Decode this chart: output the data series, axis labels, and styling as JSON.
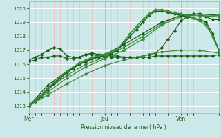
{
  "bg_color": "#cce8e8",
  "grid_color_major": "#ffffff",
  "grid_color_minor": "#ffaaaa",
  "line_color_dark": "#1a5c1a",
  "line_color_mid": "#3a8c3a",
  "ylabel": "Pression niveau de la mer( hPa )",
  "x_ticks_labels": [
    "Mer",
    "Jeu",
    "Ven"
  ],
  "x_ticks_pos": [
    0,
    96,
    192
  ],
  "ylim": [
    1012.5,
    1020.5
  ],
  "yticks": [
    1013,
    1014,
    1015,
    1016,
    1017,
    1018,
    1019,
    1020
  ],
  "series": [
    {
      "name": "s_flat_high",
      "color": "#1a5c1a",
      "linewidth": 0.9,
      "marker": "D",
      "markersize": 1.8,
      "x": [
        0,
        8,
        16,
        24,
        32,
        40,
        48,
        56,
        64,
        72,
        80,
        88,
        96,
        104,
        112,
        120,
        128,
        136,
        144,
        152,
        160,
        168,
        176,
        184,
        192,
        200,
        208,
        216,
        224,
        232,
        240
      ],
      "y": [
        1016.2,
        1016.3,
        1016.5,
        1016.5,
        1016.6,
        1016.6,
        1016.4,
        1016.4,
        1016.5,
        1016.7,
        1016.7,
        1016.6,
        1016.6,
        1016.5,
        1016.5,
        1016.5,
        1016.5,
        1016.5,
        1016.5,
        1016.5,
        1016.6,
        1016.6,
        1016.6,
        1016.6,
        1016.6,
        1016.6,
        1016.6,
        1016.6,
        1016.6,
        1016.6,
        1016.7
      ]
    },
    {
      "name": "s_bump",
      "color": "#1a5c1a",
      "linewidth": 0.9,
      "marker": "D",
      "markersize": 1.8,
      "x": [
        0,
        8,
        16,
        24,
        32,
        40,
        48,
        56,
        64,
        72,
        80,
        88,
        96,
        104,
        112,
        120,
        128,
        136,
        144,
        152,
        160,
        168,
        176,
        184,
        192,
        200,
        208,
        216,
        224,
        232,
        240
      ],
      "y": [
        1016.3,
        1016.5,
        1016.7,
        1017.0,
        1017.2,
        1017.1,
        1016.6,
        1016.5,
        1016.5,
        1016.7,
        1016.8,
        1016.7,
        1016.7,
        1016.6,
        1016.6,
        1016.5,
        1016.5,
        1016.5,
        1016.6,
        1016.7,
        1016.8,
        1017.2,
        1017.8,
        1018.4,
        1019.1,
        1019.4,
        1019.6,
        1019.6,
        1019.4,
        1019.2,
        1019.2
      ]
    },
    {
      "name": "s_diagonal1",
      "color": "#1a5c1a",
      "linewidth": 0.9,
      "marker": "D",
      "markersize": 1.8,
      "x": [
        0,
        24,
        48,
        72,
        96,
        120,
        144,
        168,
        192,
        216,
        240
      ],
      "y": [
        1013.0,
        1014.5,
        1015.5,
        1016.2,
        1016.7,
        1017.4,
        1018.2,
        1019.0,
        1019.5,
        1019.6,
        1019.5
      ]
    },
    {
      "name": "s_diagonal2",
      "color": "#3a8c3a",
      "linewidth": 0.9,
      "marker": "D",
      "markersize": 1.8,
      "x": [
        0,
        24,
        48,
        72,
        96,
        120,
        144,
        168,
        192,
        216,
        240
      ],
      "y": [
        1013.1,
        1014.2,
        1015.2,
        1016.0,
        1016.5,
        1017.2,
        1018.0,
        1018.9,
        1019.5,
        1019.5,
        1019.4
      ]
    },
    {
      "name": "s_diagonal3",
      "color": "#3a8c3a",
      "linewidth": 0.9,
      "marker": "D",
      "markersize": 1.8,
      "x": [
        0,
        24,
        48,
        72,
        96,
        120,
        144,
        168,
        192,
        216,
        240
      ],
      "y": [
        1013.0,
        1014.0,
        1015.0,
        1015.8,
        1016.4,
        1017.0,
        1017.8,
        1018.8,
        1019.4,
        1019.4,
        1019.5
      ]
    },
    {
      "name": "s_peak",
      "color": "#1a5c1a",
      "linewidth": 1.1,
      "marker": "D",
      "markersize": 1.8,
      "x": [
        0,
        8,
        16,
        24,
        32,
        40,
        48,
        56,
        64,
        72,
        80,
        88,
        96,
        104,
        112,
        120,
        128,
        136,
        144,
        152,
        160,
        168,
        176,
        184,
        192,
        200,
        208,
        216,
        224,
        232,
        240
      ],
      "y": [
        1013.0,
        1013.3,
        1013.7,
        1014.2,
        1014.6,
        1015.0,
        1015.4,
        1015.7,
        1016.0,
        1016.2,
        1016.4,
        1016.5,
        1016.6,
        1016.8,
        1017.0,
        1017.5,
        1018.0,
        1018.5,
        1019.0,
        1019.5,
        1019.8,
        1019.8,
        1019.7,
        1019.6,
        1019.5,
        1019.4,
        1019.3,
        1019.2,
        1019.0,
        1018.2,
        1017.0
      ]
    },
    {
      "name": "s_peak2",
      "color": "#3a8c3a",
      "linewidth": 1.1,
      "marker": "D",
      "markersize": 1.8,
      "x": [
        0,
        8,
        16,
        24,
        32,
        40,
        48,
        56,
        64,
        72,
        80,
        88,
        96,
        104,
        112,
        120,
        128,
        136,
        144,
        152,
        160,
        168,
        176,
        184,
        192,
        200,
        208,
        216,
        224,
        232,
        240
      ],
      "y": [
        1013.0,
        1013.4,
        1013.8,
        1014.3,
        1014.7,
        1015.1,
        1015.5,
        1015.8,
        1016.1,
        1016.3,
        1016.5,
        1016.6,
        1016.7,
        1016.9,
        1017.1,
        1017.6,
        1018.2,
        1018.7,
        1019.2,
        1019.6,
        1019.9,
        1019.9,
        1019.8,
        1019.7,
        1019.6,
        1019.5,
        1019.3,
        1019.1,
        1018.8,
        1018.0,
        1017.0
      ]
    },
    {
      "name": "s_low",
      "color": "#3a8c3a",
      "linewidth": 0.9,
      "marker": "D",
      "markersize": 1.8,
      "x": [
        0,
        24,
        48,
        72,
        96,
        120,
        144,
        168,
        192,
        216,
        240
      ],
      "y": [
        1013.0,
        1013.8,
        1014.6,
        1015.3,
        1015.9,
        1016.3,
        1016.6,
        1016.9,
        1017.0,
        1017.0,
        1016.8
      ]
    }
  ]
}
